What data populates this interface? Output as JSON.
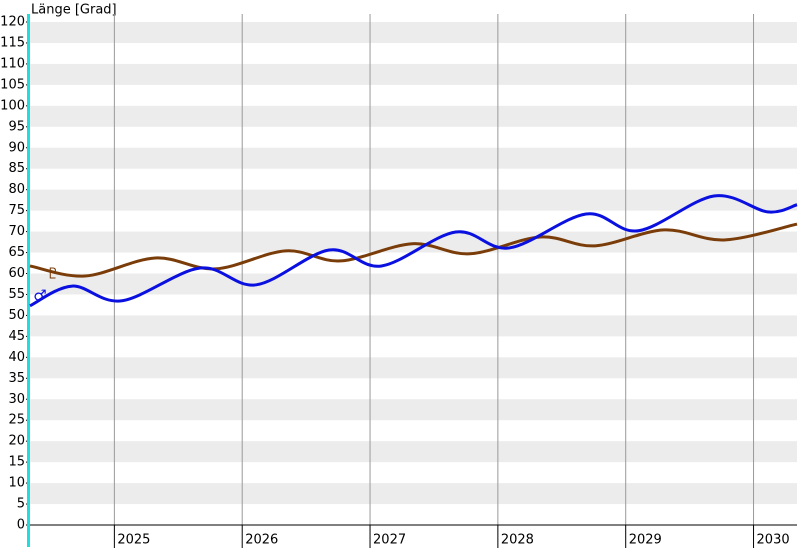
{
  "chart_data": {
    "type": "line",
    "ylabel": "Länge [Grad]",
    "xlim": [
      2024.34,
      2030.34
    ],
    "xticks": [
      2025,
      2026,
      2027,
      2028,
      2029,
      2030
    ],
    "ylim": [
      0,
      120
    ],
    "yticks": [
      0,
      5,
      10,
      15,
      20,
      25,
      30,
      35,
      40,
      45,
      50,
      55,
      60,
      65,
      70,
      75,
      80,
      85,
      90,
      95,
      100,
      105,
      110,
      115,
      120
    ],
    "grid": true,
    "series": [
      {
        "symbol": "♇",
        "color": "#7a3d0a",
        "x": [
          2024.34,
          2024.77,
          2025.32,
          2025.79,
          2026.34,
          2026.77,
          2027.33,
          2027.78,
          2028.33,
          2028.76,
          2029.3,
          2029.77,
          2030.34
        ],
        "values": [
          61.8,
          59.4,
          63.7,
          61.1,
          65.4,
          63,
          67.1,
          64.7,
          68.7,
          66.6,
          70.4,
          68,
          71.8
        ]
      },
      {
        "symbol": "♂",
        "color": "#0a10e0",
        "x": [
          2024.34,
          2024.67,
          2025.06,
          2025.67,
          2026.11,
          2026.68,
          2027.09,
          2027.67,
          2028.09,
          2028.69,
          2029.1,
          2029.69,
          2030.11,
          2030.34
        ],
        "values": [
          52.3,
          57,
          53.5,
          61.3,
          57.3,
          65.6,
          61.8,
          69.9,
          66.1,
          74.2,
          70.2,
          78.5,
          74.7,
          76.4
        ]
      }
    ]
  }
}
